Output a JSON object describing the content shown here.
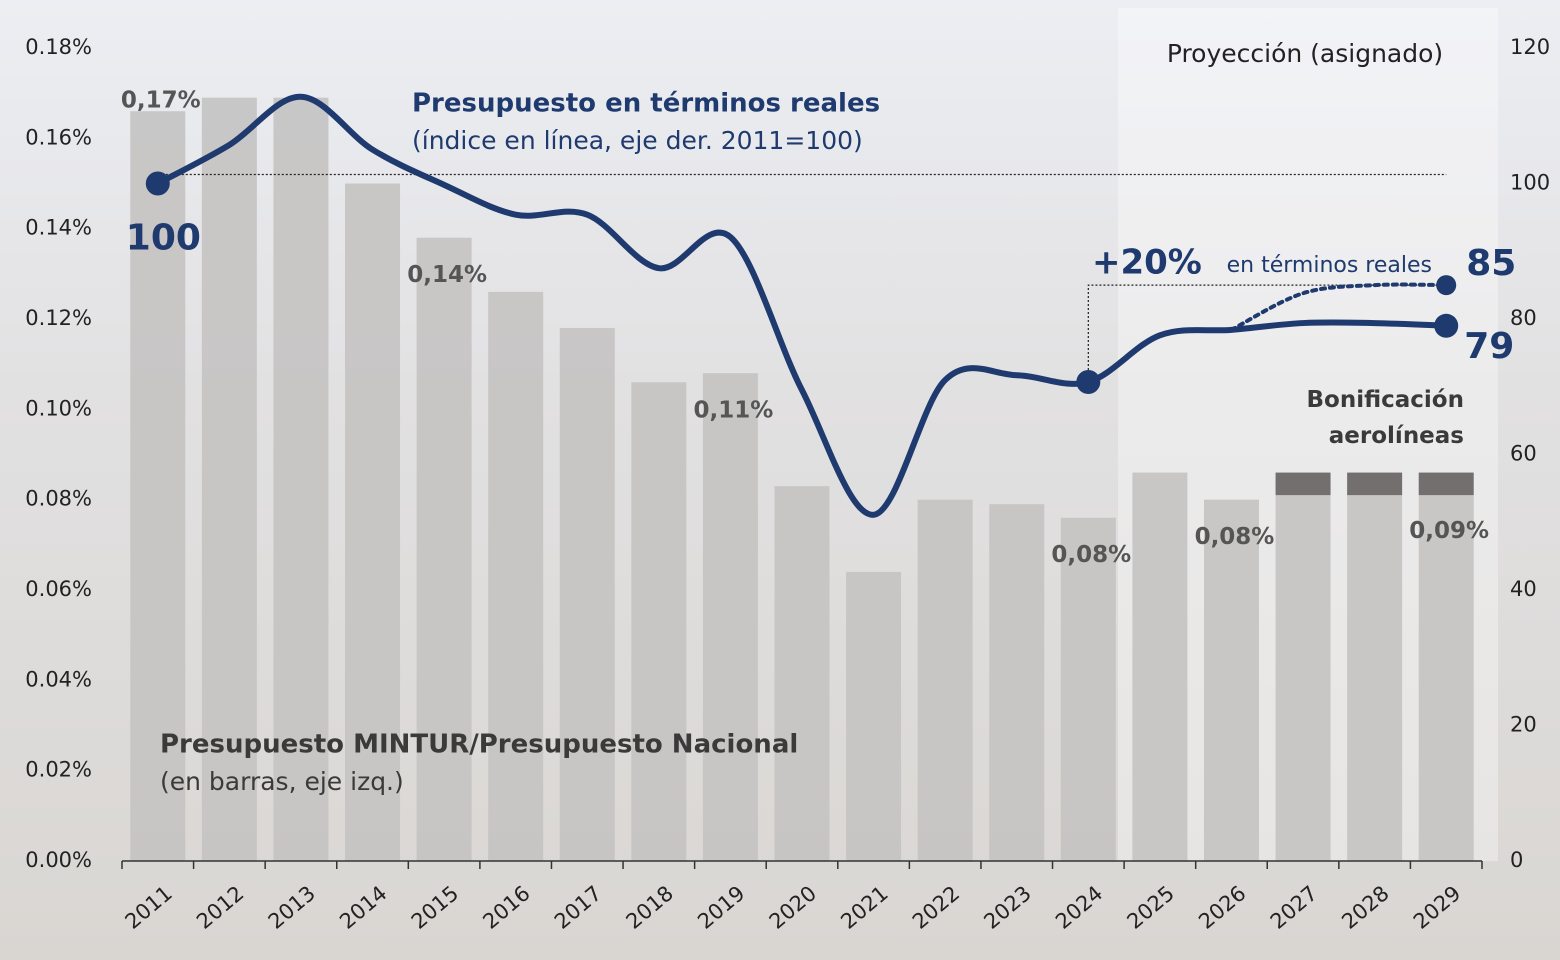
{
  "chart_data": {
    "type": "bar-line",
    "categories": [
      "2011",
      "2012",
      "2013",
      "2014",
      "2015",
      "2016",
      "2017",
      "2018",
      "2019",
      "2020",
      "2021",
      "2022",
      "2023",
      "2024",
      "2025",
      "2026",
      "2027",
      "2028",
      "2029"
    ],
    "ylim": [
      0,
      0.18
    ],
    "yticks": [
      {
        "value": 0,
        "label": "0.00%"
      },
      {
        "value": 0.02,
        "label": "0.02%"
      },
      {
        "value": 0.04,
        "label": "0.04%"
      },
      {
        "value": 0.06,
        "label": "0.06%"
      },
      {
        "value": 0.08,
        "label": "0.08%"
      },
      {
        "value": 0.1,
        "label": "0.10%"
      },
      {
        "value": 0.12,
        "label": "0.12%"
      },
      {
        "value": 0.14,
        "label": "0.14%"
      },
      {
        "value": 0.16,
        "label": "0.16%"
      },
      {
        "value": 0.18,
        "label": "0.18%"
      }
    ],
    "y2lim": [
      0,
      120
    ],
    "y2ticks": [
      0,
      20,
      40,
      60,
      80,
      100,
      120
    ],
    "series": [
      {
        "name": "Presupuesto MINTUR/Presupuesto Nacional",
        "note": "(en barras, eje izq.)",
        "type": "bar",
        "color": "#c4c3c2",
        "values": [
          0.166,
          0.169,
          0.169,
          0.15,
          0.138,
          0.126,
          0.118,
          0.106,
          0.108,
          0.083,
          0.064,
          0.08,
          0.079,
          0.076,
          0.086,
          0.08,
          0.081,
          0.081,
          0.081
        ],
        "value_labels": [
          "0,17%",
          null,
          null,
          null,
          "0,14%",
          null,
          null,
          null,
          "0,11%",
          null,
          null,
          null,
          null,
          "0,08%",
          null,
          "0,08%",
          null,
          null,
          null
        ]
      },
      {
        "name": "Bonificación aerolíneas",
        "type": "bar",
        "color": "#736f6f",
        "values": [
          null,
          null,
          null,
          null,
          null,
          null,
          null,
          null,
          null,
          null,
          null,
          null,
          null,
          null,
          null,
          null,
          0.005,
          0.005,
          0.005
        ]
      },
      {
        "name": "Presupuesto en términos reales",
        "note": "(índice en línea, eje der. 2011=100)",
        "type": "line",
        "axis": "y2",
        "color": "#1f3a6e",
        "style": "solid",
        "values": [
          100,
          105.7,
          112.8,
          105,
          99.8,
          95.4,
          95.4,
          87.5,
          92.1,
          69.5,
          51.1,
          71,
          71.7,
          70.7,
          77.6,
          78.4,
          79.4,
          79.4,
          79
        ],
        "markers": [
          0,
          13,
          18
        ],
        "data_labels": [
          0,
          18
        ]
      },
      {
        "type": "line",
        "axis": "y2",
        "color": "#1f3a6e",
        "style": "dotted",
        "values": [
          null,
          null,
          null,
          null,
          null,
          null,
          null,
          null,
          null,
          null,
          null,
          null,
          null,
          null,
          null,
          78.4,
          83.8,
          85,
          85
        ],
        "markers": [
          18
        ],
        "data_labels": [
          18
        ]
      }
    ],
    "annotations": {
      "projection": "Proyección (asignado)",
      "change": "+20%",
      "change_note": "en términos reales",
      "total_label": "0,09%"
    }
  }
}
